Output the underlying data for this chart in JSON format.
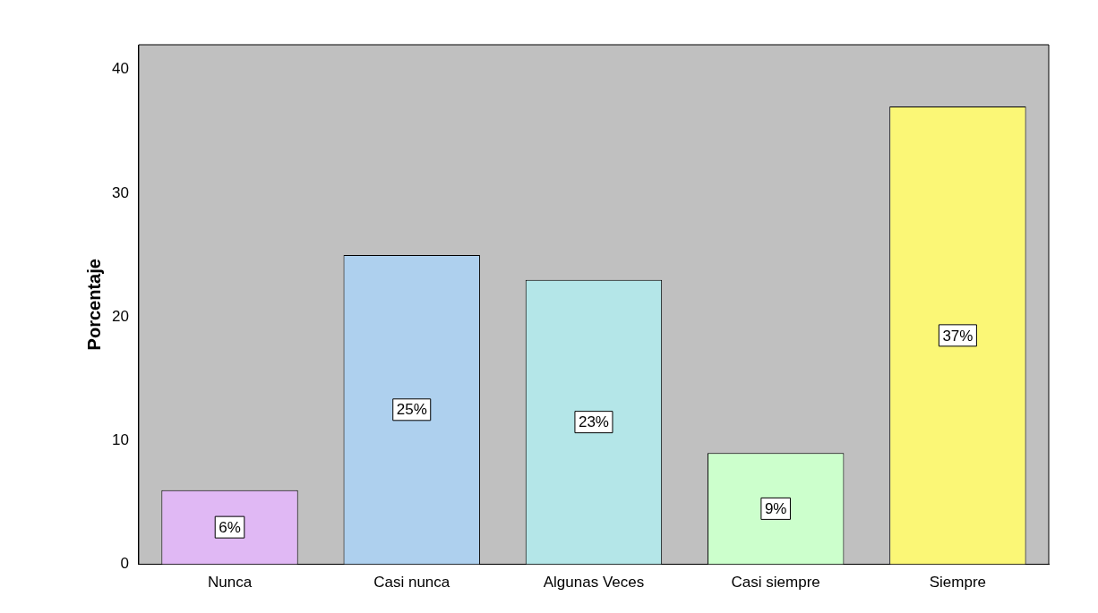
{
  "chart_data": {
    "type": "bar",
    "ylabel": "Porcentaje",
    "categories": [
      "Nunca",
      "Casi nunca",
      "Algunas Veces",
      "Casi siempre",
      "Siempre"
    ],
    "values": [
      6,
      25,
      23,
      9,
      37
    ],
    "value_labels": [
      "6%",
      "25%",
      "23%",
      "9%",
      "37%"
    ],
    "colors": [
      "#e0b8f4",
      "#aed0ee",
      "#b4e6e8",
      "#ccffcc",
      "#fbf776"
    ],
    "ylim": [
      0,
      42
    ],
    "yticks": [
      0,
      10,
      20,
      30,
      40
    ],
    "grid": false,
    "legend": false
  }
}
